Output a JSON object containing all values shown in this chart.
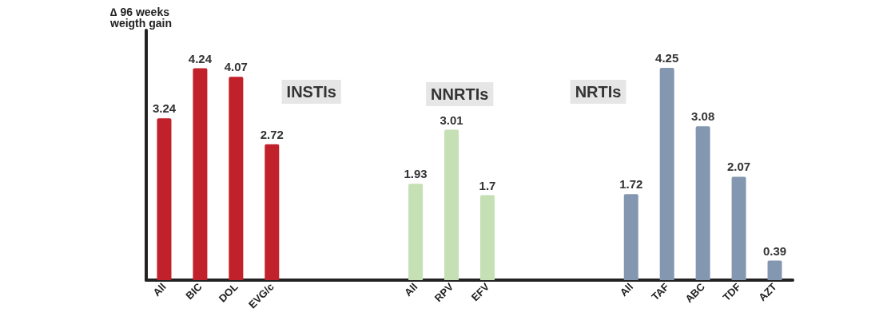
{
  "chart_data": {
    "type": "bar",
    "ylabel": "∆ 96 weeks\nweigth gain",
    "categories": [
      "All",
      "BIC",
      "DOL",
      "EVG/c",
      null,
      null,
      null,
      "All",
      "RPV",
      "EFV",
      null,
      null,
      null,
      "All",
      "TAF",
      "ABC",
      "TDF",
      "AZT"
    ],
    "values": [
      3.24,
      4.24,
      4.07,
      2.72,
      null,
      null,
      null,
      1.93,
      3.01,
      1.7,
      null,
      null,
      null,
      1.72,
      4.25,
      3.08,
      2.07,
      0.39
    ],
    "colors": [
      "#c0212a",
      "#c0212a",
      "#c0212a",
      "#c0212a",
      null,
      null,
      null,
      "#c5e0b4",
      "#c5e0b4",
      "#c5e0b4",
      null,
      null,
      null,
      "#8497b0",
      "#8497b0",
      "#8497b0",
      "#8497b0",
      "#8497b0"
    ],
    "annotations": [
      "INSTIs",
      "NNRTIs",
      "NRTIs"
    ],
    "data_labels": true,
    "tick_labels": "x",
    "grid": false
  }
}
